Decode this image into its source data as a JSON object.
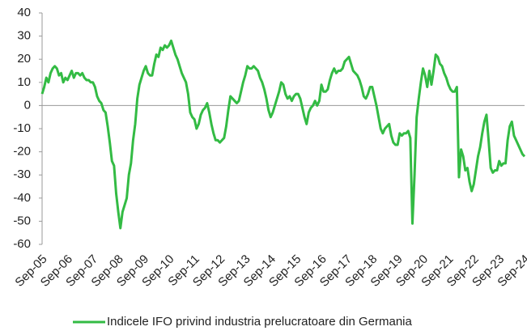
{
  "chart_data": {
    "type": "line",
    "categories": [
      "Sep-05",
      null,
      null,
      null,
      null,
      null,
      null,
      null,
      null,
      null,
      null,
      null,
      "Sep-06",
      null,
      null,
      null,
      null,
      null,
      null,
      null,
      null,
      null,
      null,
      null,
      "Sep-07",
      null,
      null,
      null,
      null,
      null,
      null,
      null,
      null,
      null,
      null,
      null,
      "Sep-08",
      null,
      null,
      null,
      null,
      null,
      null,
      null,
      null,
      null,
      null,
      null,
      "Sep-09",
      null,
      null,
      null,
      null,
      null,
      null,
      null,
      null,
      null,
      null,
      null,
      "Sep-10",
      null,
      null,
      null,
      null,
      null,
      null,
      null,
      null,
      null,
      null,
      null,
      "Sep-11",
      null,
      null,
      null,
      null,
      null,
      null,
      null,
      null,
      null,
      null,
      null,
      "Sep-12",
      null,
      null,
      null,
      null,
      null,
      null,
      null,
      null,
      null,
      null,
      null,
      "Sep-13",
      null,
      null,
      null,
      null,
      null,
      null,
      null,
      null,
      null,
      null,
      null,
      "Sep-14",
      null,
      null,
      null,
      null,
      null,
      null,
      null,
      null,
      null,
      null,
      null,
      "Sep-15",
      null,
      null,
      null,
      null,
      null,
      null,
      null,
      null,
      null,
      null,
      null,
      "Sep-16",
      null,
      null,
      null,
      null,
      null,
      null,
      null,
      null,
      null,
      null,
      null,
      "Sep-17",
      null,
      null,
      null,
      null,
      null,
      null,
      null,
      null,
      null,
      null,
      null,
      "Sep-18",
      null,
      null,
      null,
      null,
      null,
      null,
      null,
      null,
      null,
      null,
      null,
      "Sep-19",
      null,
      null,
      null,
      null,
      null,
      null,
      null,
      null,
      null,
      null,
      null,
      "Sep-20",
      null,
      null,
      null,
      null,
      null,
      null,
      null,
      null,
      null,
      null,
      null,
      "Sep-21",
      null,
      null,
      null,
      null,
      null,
      null,
      null,
      null,
      null,
      null,
      null,
      "Sep-22",
      null,
      null,
      null,
      null,
      null,
      null,
      null,
      null,
      null,
      null,
      null,
      "Sep-23",
      null,
      null,
      null,
      null,
      null,
      null,
      null,
      null,
      null,
      null,
      null,
      "Sep-24"
    ],
    "series": [
      {
        "name": "Indicele IFO privind industria prelucratoare din Germania",
        "color": "#33bb44",
        "values": [
          5,
          8,
          12,
          10,
          14,
          16,
          17,
          16,
          13,
          14,
          10,
          12,
          11,
          13,
          15,
          12,
          14,
          14,
          13,
          14,
          12,
          11,
          11,
          10,
          10,
          8,
          4,
          2,
          1,
          -2,
          -3,
          -9,
          -16,
          -24,
          -26,
          -38,
          -46,
          -53,
          -46,
          -43,
          -40,
          -30,
          -25,
          -15,
          -8,
          3,
          9,
          12,
          15,
          17,
          14,
          13,
          13,
          18,
          22,
          21,
          25,
          24,
          26,
          25,
          26,
          28,
          25,
          22,
          20,
          17,
          14,
          12,
          10,
          5,
          -3,
          -5,
          -6,
          -10,
          -8,
          -4,
          -2,
          -1,
          1,
          -3,
          -8,
          -12,
          -15,
          -15,
          -16,
          -15,
          -14,
          -9,
          -2,
          4,
          3,
          2,
          1,
          2,
          6,
          10,
          13,
          17,
          16,
          16,
          17,
          16,
          15,
          12,
          10,
          7,
          3,
          -2,
          -5,
          -3,
          0,
          3,
          6,
          10,
          9,
          5,
          3,
          4,
          2,
          4,
          5,
          5,
          3,
          -1,
          -5,
          -8,
          -3,
          -1,
          0,
          2,
          0,
          2,
          9,
          6,
          6,
          7,
          11,
          14,
          16,
          14,
          15,
          15,
          16,
          19,
          20,
          21,
          18,
          15,
          14,
          13,
          11,
          8,
          4,
          3,
          5,
          8,
          8,
          4,
          0,
          -5,
          -10,
          -12,
          -10,
          -9,
          -8,
          -13,
          -16,
          -17,
          -17,
          -12,
          -13,
          -12,
          -12,
          -11,
          -14,
          -51,
          -30,
          -5,
          3,
          10,
          16,
          13,
          8,
          15,
          9,
          15,
          22,
          21,
          18,
          17,
          14,
          12,
          9,
          7,
          6,
          6,
          8,
          -31,
          -19,
          -22,
          -28,
          -27,
          -33,
          -37,
          -34,
          -28,
          -22,
          -18,
          -12,
          -7,
          -4,
          -15,
          -27,
          -29,
          -28,
          -28,
          -24,
          -26,
          -25,
          -25,
          -15,
          -9,
          -7,
          -13,
          -15,
          -17,
          -19,
          -21,
          -22
        ]
      }
    ],
    "ylim": [
      -60,
      40
    ],
    "yticks": [
      -60,
      -50,
      -40,
      -30,
      -20,
      -10,
      0,
      10,
      20,
      30,
      40
    ],
    "legend": "bottom"
  }
}
